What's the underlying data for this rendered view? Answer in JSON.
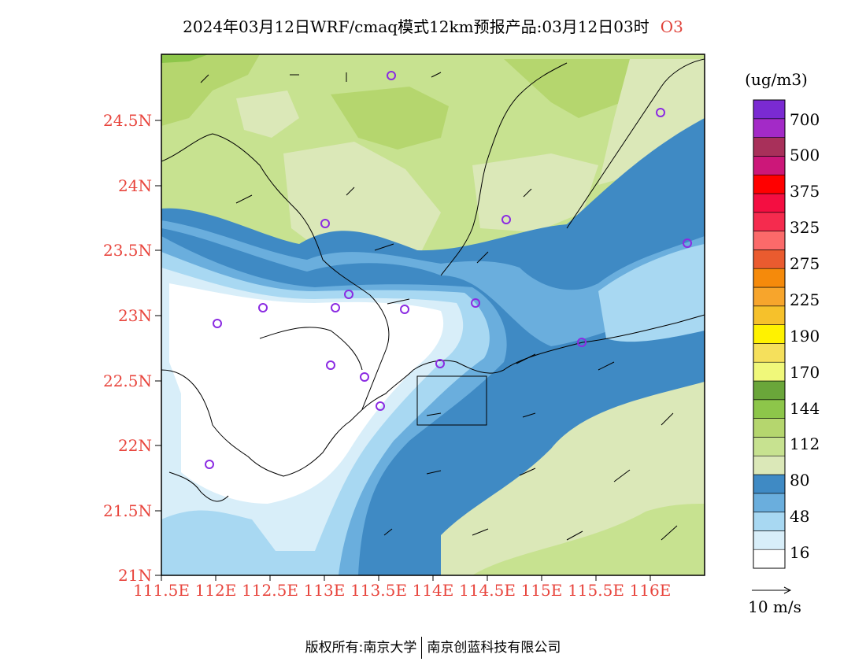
{
  "header": {
    "title": "2024年03月12日WRF/cmaq模式12km预报产品:03月12日03时",
    "species": "O3"
  },
  "map": {
    "lat_labels": [
      "24.5N",
      "24N",
      "23.5N",
      "23N",
      "22.5N",
      "22N",
      "21.5N",
      "21N"
    ],
    "lon_labels": [
      "111.5E",
      "112E",
      "112.5E",
      "113E",
      "113.5E",
      "114E",
      "114.5E",
      "115E",
      "115.5E",
      "116E"
    ]
  },
  "colorbar": {
    "unit": "(ug/m3)",
    "colors": [
      "#ffffff",
      "#d8eef9",
      "#a8d8f2",
      "#6aaedd",
      "#3f8ac4",
      "#dbe8b8",
      "#c7e290",
      "#b5d66e",
      "#8dc64a",
      "#6aa63a",
      "#f0f87a",
      "#f5e05c",
      "#fff200",
      "#f6c12b",
      "#f7a52c",
      "#f58a0b",
      "#ea5b2f",
      "#fb6a6a",
      "#f52b4e",
      "#f40e41",
      "#ff0000",
      "#cc1779",
      "#a8305a",
      "#a32ac7",
      "#7a2ad2"
    ],
    "labels": [
      "16",
      "48",
      "80",
      "112",
      "144",
      "170",
      "190",
      "225",
      "275",
      "325",
      "375",
      "500",
      "700"
    ]
  },
  "wind_legend": {
    "label": "10 m/s"
  },
  "footer": {
    "left": "版权所有:南京大学",
    "right": "南京创蓝科技有限公司"
  }
}
